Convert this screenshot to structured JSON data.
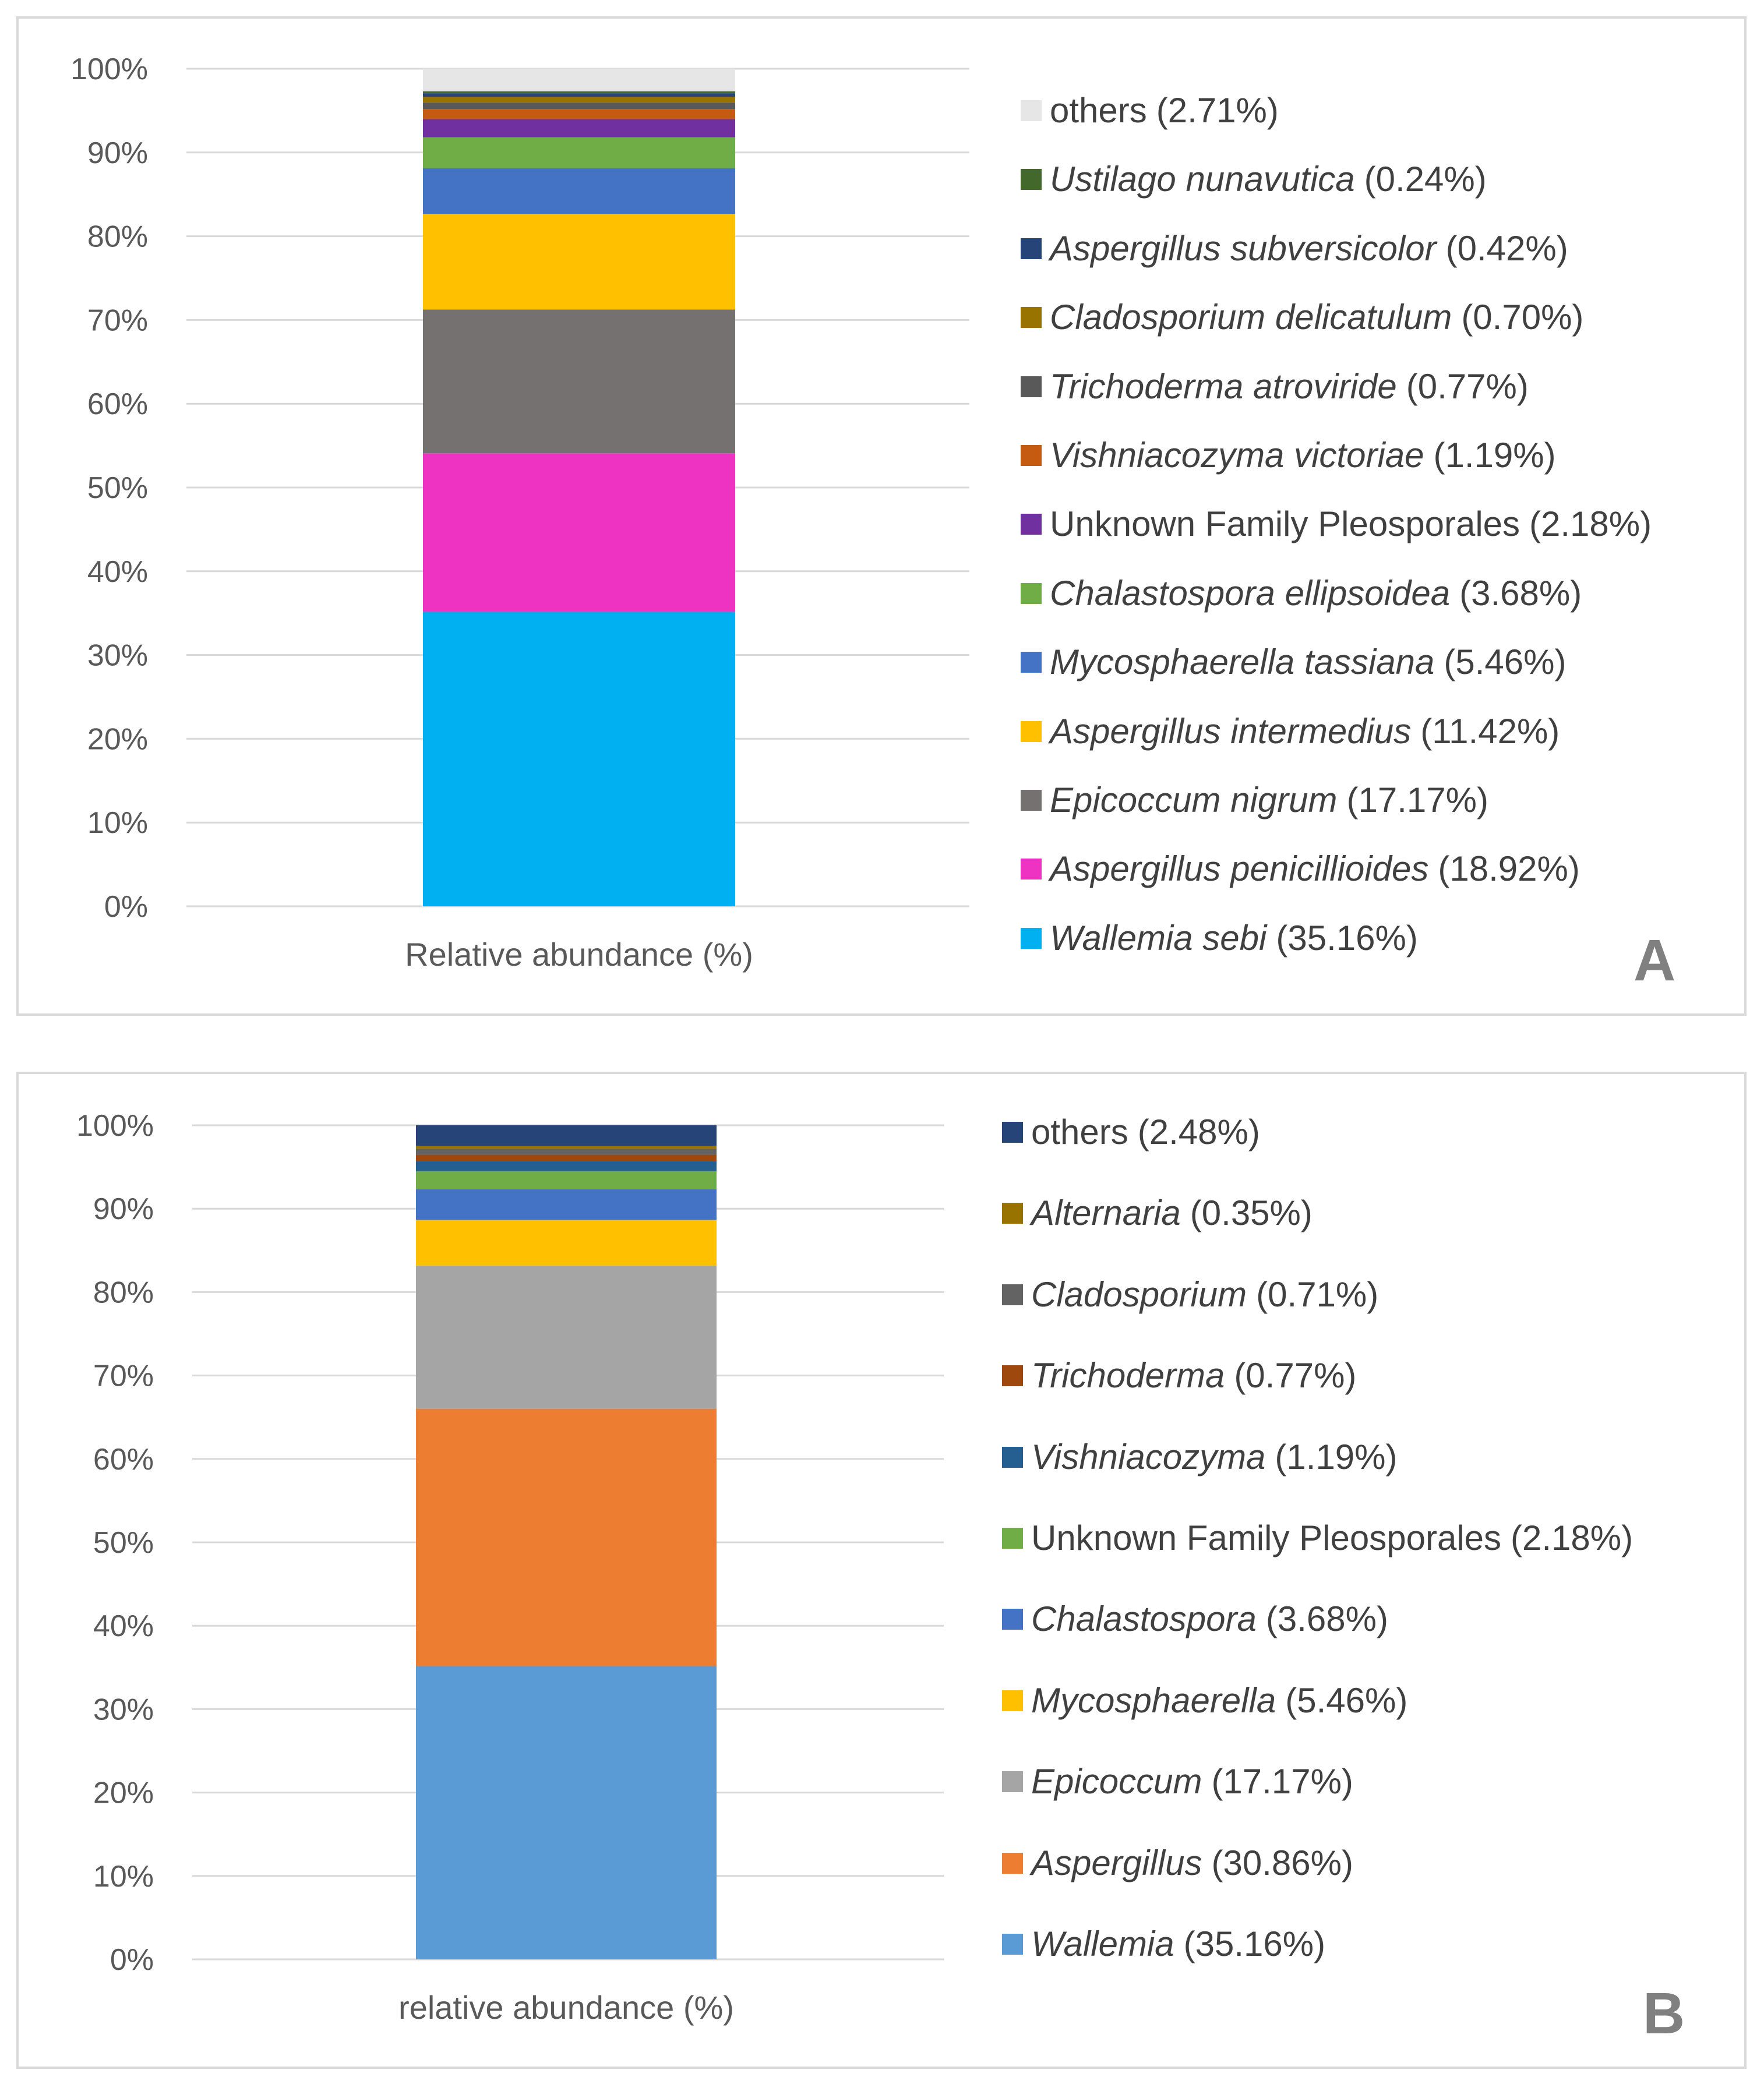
{
  "colors": {
    "wallemia_sebi": "#00b0f0",
    "aspergillus_penicillioides": "#ee33c3",
    "epicoccum_nigrum": "#757171",
    "aspergillus_intermedius": "#ffc000",
    "mycosphaerella_tassiana": "#4472c4",
    "chalastospora_ellipsoidea": "#70ad47",
    "unknown_family": "#7030a0",
    "vishniacozyma_victoriae": "#c55a11",
    "trichoderma_atroviride": "#595959",
    "cladosporium_delicatulum": "#997300",
    "aspergillus_subversicolor": "#264478",
    "ustilago_nunavutica": "#43682b",
    "others_a": "#e7e6e6",
    "wallemia": "#5b9bd5",
    "aspergillus": "#ed7d31",
    "epicoccum": "#a5a5a5",
    "mycosphaerella": "#ffc000",
    "chalastospora": "#4472c4",
    "unknown_family_b": "#70ad47",
    "vishniacozyma": "#255e91",
    "trichoderma": "#9e480e",
    "cladosporium": "#636363",
    "alternaria": "#997300",
    "others_b": "#264478"
  },
  "chart_data": [
    {
      "type": "bar",
      "stacked": true,
      "panel_label": "A",
      "categories": [
        "Relative abundance (%)"
      ],
      "ylim": [
        0,
        100
      ],
      "yticks": [
        "0%",
        "10%",
        "20%",
        "30%",
        "40%",
        "50%",
        "60%",
        "70%",
        "80%",
        "90%",
        "100%"
      ],
      "grid": true,
      "legend_position": "right",
      "series": [
        {
          "name": "Wallemia sebi",
          "pct_label": "(35.16%)",
          "value": 35.16,
          "italic": true,
          "color_key": "wallemia_sebi"
        },
        {
          "name": "Aspergillus penicillioides",
          "pct_label": "(18.92%)",
          "value": 18.92,
          "italic": true,
          "color_key": "aspergillus_penicillioides"
        },
        {
          "name": "Epicoccum nigrum",
          "pct_label": "(17.17%)",
          "value": 17.17,
          "italic": true,
          "color_key": "epicoccum_nigrum"
        },
        {
          "name": "Aspergillus intermedius",
          "pct_label": "(11.42%)",
          "value": 11.42,
          "italic": true,
          "color_key": "aspergillus_intermedius"
        },
        {
          "name": "Mycosphaerella tassiana",
          "pct_label": "(5.46%)",
          "value": 5.46,
          "italic": true,
          "color_key": "mycosphaerella_tassiana"
        },
        {
          "name": "Chalastospora ellipsoidea",
          "pct_label": "(3.68%)",
          "value": 3.68,
          "italic": true,
          "color_key": "chalastospora_ellipsoidea"
        },
        {
          "name": "Unknown Family Pleosporales",
          "pct_label": "(2.18%)",
          "value": 2.18,
          "italic": false,
          "color_key": "unknown_family"
        },
        {
          "name": "Vishniacozyma victoriae",
          "pct_label": "(1.19%)",
          "value": 1.19,
          "italic": true,
          "color_key": "vishniacozyma_victoriae"
        },
        {
          "name": "Trichoderma atroviride",
          "pct_label": "(0.77%)",
          "value": 0.77,
          "italic": true,
          "color_key": "trichoderma_atroviride"
        },
        {
          "name": "Cladosporium delicatulum",
          "pct_label": "(0.70%)",
          "value": 0.7,
          "italic": true,
          "color_key": "cladosporium_delicatulum"
        },
        {
          "name": "Aspergillus subversicolor",
          "pct_label": "(0.42%)",
          "value": 0.42,
          "italic": true,
          "color_key": "aspergillus_subversicolor"
        },
        {
          "name": "Ustilago nunavutica",
          "pct_label": "(0.24%)",
          "value": 0.24,
          "italic": true,
          "color_key": "ustilago_nunavutica"
        },
        {
          "name": "others",
          "pct_label": "(2.71%)",
          "value": 2.71,
          "italic": false,
          "color_key": "others_a"
        }
      ]
    },
    {
      "type": "bar",
      "stacked": true,
      "panel_label": "B",
      "categories": [
        "relative abundance (%)"
      ],
      "ylim": [
        0,
        100
      ],
      "yticks": [
        "0%",
        "10%",
        "20%",
        "30%",
        "40%",
        "50%",
        "60%",
        "70%",
        "80%",
        "90%",
        "100%"
      ],
      "grid": true,
      "legend_position": "right",
      "series": [
        {
          "name": "Wallemia",
          "pct_label": "(35.16%)",
          "value": 35.16,
          "italic": true,
          "color_key": "wallemia"
        },
        {
          "name": "Aspergillus",
          "pct_label": "(30.86%)",
          "value": 30.86,
          "italic": true,
          "color_key": "aspergillus"
        },
        {
          "name": "Epicoccum",
          "pct_label": "(17.17%)",
          "value": 17.17,
          "italic": true,
          "color_key": "epicoccum"
        },
        {
          "name": "Mycosphaerella",
          "pct_label": "(5.46%)",
          "value": 5.46,
          "italic": true,
          "color_key": "mycosphaerella"
        },
        {
          "name": "Chalastospora",
          "pct_label": "(3.68%)",
          "value": 3.68,
          "italic": true,
          "color_key": "chalastospora"
        },
        {
          "name": "Unknown Family Pleosporales",
          "pct_label": "(2.18%)",
          "value": 2.18,
          "italic": false,
          "color_key": "unknown_family_b"
        },
        {
          "name": "Vishniacozyma",
          "pct_label": "(1.19%)",
          "value": 1.19,
          "italic": true,
          "color_key": "vishniacozyma"
        },
        {
          "name": "Trichoderma",
          "pct_label": "(0.77%)",
          "value": 0.77,
          "italic": true,
          "color_key": "trichoderma"
        },
        {
          "name": "Cladosporium",
          "pct_label": "(0.71%)",
          "value": 0.71,
          "italic": true,
          "color_key": "cladosporium"
        },
        {
          "name": "Alternaria",
          "pct_label": "(0.35%)",
          "value": 0.35,
          "italic": true,
          "color_key": "alternaria"
        },
        {
          "name": "others",
          "pct_label": "(2.48%)",
          "value": 2.48,
          "italic": false,
          "color_key": "others_b"
        }
      ]
    }
  ]
}
